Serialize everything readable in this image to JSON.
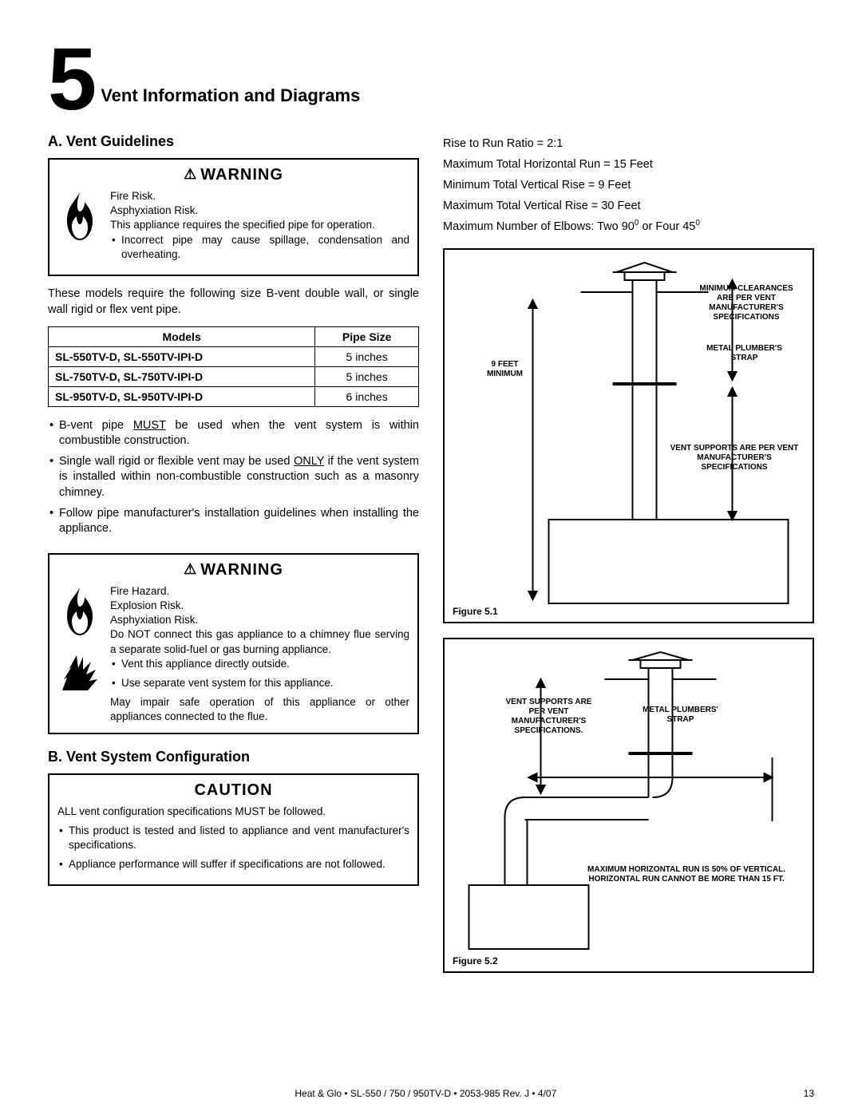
{
  "chapter": {
    "number": "5",
    "title": "Vent Information and Diagrams"
  },
  "sectionA": {
    "heading": "A.  Vent Guidelines",
    "warning1": {
      "title": "WARNING",
      "lines": [
        "Fire Risk.",
        "Asphyxiation Risk.",
        "This appliance requires the specified pipe for operation."
      ],
      "bullets": [
        "Incorrect pipe may cause spillage, condensation and overheating."
      ]
    },
    "intro": "These models require the following size B-vent double wall, or single wall rigid or flex vent pipe.",
    "table": {
      "headers": [
        "Models",
        "Pipe Size"
      ],
      "rows": [
        [
          "SL-550TV-D, SL-550TV-IPI-D",
          "5 inches"
        ],
        [
          "SL-750TV-D, SL-750TV-IPI-D",
          "5 inches"
        ],
        [
          "SL-950TV-D, SL-950TV-IPI-D",
          "6 inches"
        ]
      ]
    },
    "bullets": [
      "B-vent pipe <span class='u'>MUST</span> be used when the vent system is within combustible construction.",
      "Single wall rigid or flexible vent may be used <span class='u'>ONLY</span> if the vent system is installed within non-combustible construction such as a masonry chimney.",
      "Follow pipe manufacturer's installation guidelines when installing the appliance."
    ],
    "warning2": {
      "title": "WARNING",
      "lines": [
        "Fire Hazard.",
        "Explosion Risk.",
        "Asphyxiation Risk.",
        "Do NOT connect this gas appliance to a chimney flue serving a separate solid-fuel or gas burning appliance."
      ],
      "bullets": [
        "Vent this appliance directly outside.",
        "Use separate vent system for this appliance."
      ],
      "tail": "May impair safe operation of this appliance or other appliances connected to the flue."
    }
  },
  "sectionB": {
    "heading": "B.  Vent System Conﬁguration",
    "caution": {
      "title": "CAUTION",
      "lead": "ALL vent configuration specifications MUST be followed.",
      "bullets": [
        "This product is tested and listed to appliance and vent manufacturer's specifications.",
        "Appliance performance will suffer if specifications are not followed."
      ]
    }
  },
  "rightCol": {
    "specs": [
      "Rise to Run Ratio = 2:1",
      "Maximum Total Horizontal Run = 15 Feet",
      "Minimum Total Vertical Rise = 9 Feet",
      "Maximum Total Vertical Rise = 30 Feet",
      "Maximum Number of Elbows:  Two 90<sup>0</sup>  or  Four 45<sup>0</sup>"
    ],
    "fig1": {
      "label": "Figure 5.1",
      "labels": {
        "clearances": "MINIMUM CLEARANCES ARE PER VENT MANUFACTURER'S SPECIFICATIONS",
        "strap": "METAL PLUMBER'S STRAP",
        "nineft": "9 FEET MINIMUM",
        "supports": "VENT SUPPORTS ARE PER VENT MANUFACTURER'S SPECIFICATIONS"
      }
    },
    "fig2": {
      "label": "Figure 5.2",
      "labels": {
        "supports": "VENT SUPPORTS ARE PER VENT MANUFACTURER'S SPECIFICATIONS.",
        "strap": "METAL PLUMBERS' STRAP",
        "horiz": "MAXIMUM HORIZONTAL RUN IS 50% OF VERTICAL. HORIZONTAL RUN CANNOT BE MORE THAN 15 FT."
      }
    }
  },
  "footer": {
    "center": "Heat & Glo  •  SL-550 / 750 / 950TV-D  •  2053-985 Rev. J  •  4/07",
    "page": "13"
  },
  "style": {
    "border_color": "#000000",
    "text_color": "#000000",
    "page_bg": "#ffffff",
    "diag_stroke": "#000000",
    "diag_stroke_w": 2
  }
}
